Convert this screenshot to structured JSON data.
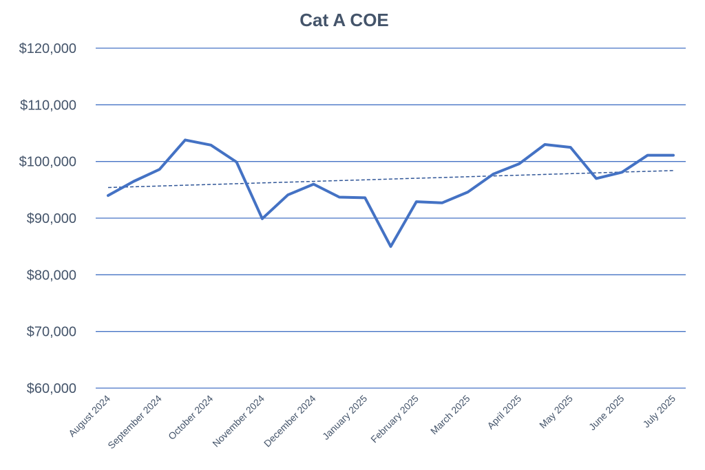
{
  "colors": {
    "series": "#4472c4",
    "trendline": "#2f5597",
    "gridline": "#4472c4",
    "text": "#44546a"
  },
  "chart_data": {
    "type": "line",
    "title": "Cat A COE",
    "xlabel": "",
    "ylabel": "",
    "ylim": [
      60000,
      120000
    ],
    "y_ticks": [
      60000,
      70000,
      80000,
      90000,
      100000,
      110000,
      120000
    ],
    "y_tick_labels": [
      "$60,000",
      "$70,000",
      "$80,000",
      "$90,000",
      "$100,000",
      "$110,000",
      "$120,000"
    ],
    "grid": true,
    "legend": "none",
    "categories": [
      "August 2024",
      "September 2024",
      "October 2024",
      "November 2024",
      "December 2024",
      "January 2025",
      "February 2025",
      "March 2025",
      "April 2025",
      "May 2025",
      "June 2025",
      "July 2025"
    ],
    "series": [
      {
        "name": "Cat A COE",
        "x": [
          0,
          0.5,
          1,
          1.5,
          2,
          2.5,
          3,
          3.5,
          4,
          4.5,
          5,
          5.5,
          6,
          6.5,
          7,
          7.5,
          8,
          8.5,
          9,
          9.5,
          10,
          10.5,
          11
        ],
        "values": [
          94000,
          96500,
          98600,
          103800,
          102900,
          99900,
          89900,
          94100,
          96000,
          93700,
          93600,
          85000,
          92900,
          92700,
          94600,
          97800,
          99600,
          103000,
          102500,
          97000,
          98100,
          101100,
          101100
        ]
      }
    ],
    "trendline": {
      "type": "linear",
      "start": 95400,
      "end": 98400
    }
  }
}
